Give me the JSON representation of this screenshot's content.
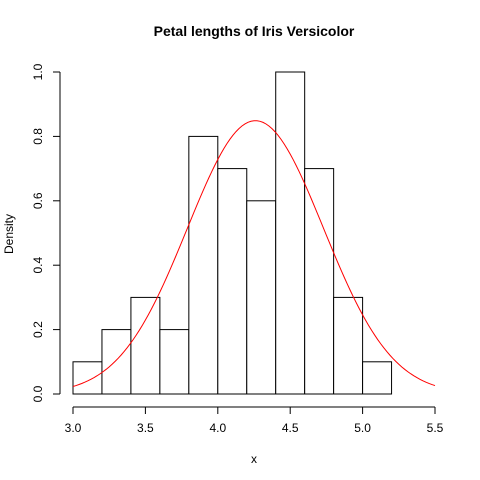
{
  "chart_data": {
    "type": "bar",
    "title": "Petal lengths of Iris Versicolor",
    "xlabel": "x",
    "ylabel": "Density",
    "xlim": [
      3.0,
      5.5
    ],
    "ylim": [
      0.0,
      1.0
    ],
    "x_ticks": [
      "3.0",
      "3.5",
      "4.0",
      "4.5",
      "5.0",
      "5.5"
    ],
    "y_ticks": [
      "0.0",
      "0.2",
      "0.4",
      "0.6",
      "0.8",
      "1.0"
    ],
    "bins": [
      {
        "start": 3.0,
        "end": 3.2,
        "density": 0.1
      },
      {
        "start": 3.2,
        "end": 3.4,
        "density": 0.2
      },
      {
        "start": 3.4,
        "end": 3.6,
        "density": 0.3
      },
      {
        "start": 3.6,
        "end": 3.8,
        "density": 0.2
      },
      {
        "start": 3.8,
        "end": 4.0,
        "density": 0.8
      },
      {
        "start": 4.0,
        "end": 4.2,
        "density": 0.7
      },
      {
        "start": 4.2,
        "end": 4.4,
        "density": 0.6
      },
      {
        "start": 4.4,
        "end": 4.6,
        "density": 1.0
      },
      {
        "start": 4.6,
        "end": 4.8,
        "density": 0.7
      },
      {
        "start": 4.8,
        "end": 5.0,
        "density": 0.3
      },
      {
        "start": 5.0,
        "end": 5.2,
        "density": 0.1
      }
    ],
    "density_curve": {
      "mean": 4.26,
      "sd": 0.47,
      "x_range": [
        3.0,
        5.5
      ],
      "color": "#ff0000"
    },
    "grid": false,
    "legend": "none"
  }
}
